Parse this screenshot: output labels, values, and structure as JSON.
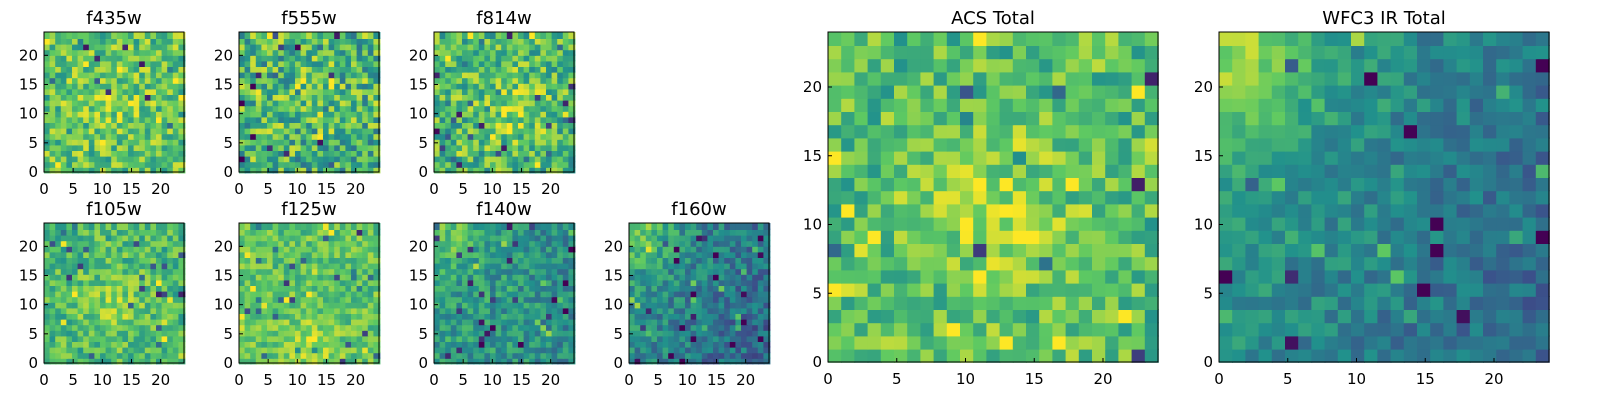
{
  "figure": {
    "description": "Grid of image panels for per-filter and combined stacks",
    "colormap": {
      "name": "viridis",
      "stops": [
        "#440154",
        "#3b528b",
        "#21918c",
        "#5ec962",
        "#fde725"
      ]
    }
  },
  "chart_data": [
    {
      "id": "f435w",
      "type": "heatmap",
      "title": "f435w",
      "grid": [
        25,
        25
      ],
      "xlim": [
        0,
        24
      ],
      "ylim": [
        0,
        24
      ],
      "xticks": [
        0,
        5,
        10,
        15,
        20
      ],
      "yticks": [
        0,
        5,
        10,
        15,
        20
      ],
      "tick_labels_x": [
        "0",
        "5",
        "10",
        "15",
        "20"
      ],
      "tick_labels_y": [
        "0",
        "5",
        "10",
        "15",
        "20"
      ],
      "pattern": {
        "mean": 0.72,
        "noise": 0.22,
        "bright_center": [
          12,
          12
        ],
        "bright_strength": 0.08,
        "seed": 435
      }
    },
    {
      "id": "f555w",
      "type": "heatmap",
      "title": "f555w",
      "grid": [
        25,
        25
      ],
      "xlim": [
        0,
        24
      ],
      "ylim": [
        0,
        24
      ],
      "xticks": [
        0,
        5,
        10,
        15,
        20
      ],
      "yticks": [
        0,
        5,
        10,
        15,
        20
      ],
      "tick_labels_x": [
        "0",
        "5",
        "10",
        "15",
        "20"
      ],
      "tick_labels_y": [
        "0",
        "5",
        "10",
        "15",
        "20"
      ],
      "pattern": {
        "mean": 0.66,
        "noise": 0.28,
        "bright_center": [
          12,
          12
        ],
        "bright_strength": 0.04,
        "seed": 555
      }
    },
    {
      "id": "f814w",
      "type": "heatmap",
      "title": "f814w",
      "grid": [
        25,
        25
      ],
      "xlim": [
        0,
        24
      ],
      "ylim": [
        0,
        24
      ],
      "xticks": [
        0,
        5,
        10,
        15,
        20
      ],
      "yticks": [
        0,
        5,
        10,
        15,
        20
      ],
      "tick_labels_x": [
        "0",
        "5",
        "10",
        "15",
        "20"
      ],
      "tick_labels_y": [
        "0",
        "5",
        "10",
        "15",
        "20"
      ],
      "pattern": {
        "mean": 0.68,
        "noise": 0.24,
        "bright_center": [
          13,
          11
        ],
        "bright_strength": 0.14,
        "seed": 814
      }
    },
    {
      "id": "f105w",
      "type": "heatmap",
      "title": "f105w",
      "grid": [
        25,
        25
      ],
      "xlim": [
        0,
        24
      ],
      "ylim": [
        0,
        24
      ],
      "xticks": [
        0,
        5,
        10,
        15,
        20
      ],
      "yticks": [
        0,
        5,
        10,
        15,
        20
      ],
      "tick_labels_x": [
        "0",
        "5",
        "10",
        "15",
        "20"
      ],
      "tick_labels_y": [
        "0",
        "5",
        "10",
        "15",
        "20"
      ],
      "pattern": {
        "mean": 0.68,
        "noise": 0.18,
        "bright_center": [
          12,
          10
        ],
        "bright_strength": 0.12,
        "seed": 105
      }
    },
    {
      "id": "f125w",
      "type": "heatmap",
      "title": "f125w",
      "grid": [
        25,
        25
      ],
      "xlim": [
        0,
        24
      ],
      "ylim": [
        0,
        24
      ],
      "xticks": [
        0,
        5,
        10,
        15,
        20
      ],
      "yticks": [
        0,
        5,
        10,
        15,
        20
      ],
      "tick_labels_x": [
        "0",
        "5",
        "10",
        "15",
        "20"
      ],
      "tick_labels_y": [
        "0",
        "5",
        "10",
        "15",
        "20"
      ],
      "pattern": {
        "mean": 0.72,
        "noise": 0.16,
        "bright_center": [
          12,
          3
        ],
        "bright_strength": 0.12,
        "seed": 125
      }
    },
    {
      "id": "f140w",
      "type": "heatmap",
      "title": "f140w",
      "grid": [
        25,
        25
      ],
      "xlim": [
        0,
        24
      ],
      "ylim": [
        0,
        24
      ],
      "xticks": [
        0,
        5,
        10,
        15,
        20
      ],
      "yticks": [
        0,
        5,
        10,
        15,
        20
      ],
      "tick_labels_x": [
        "0",
        "5",
        "10",
        "15",
        "20"
      ],
      "tick_labels_y": [
        "0",
        "5",
        "10",
        "15",
        "20"
      ],
      "pattern": {
        "mean": 0.56,
        "noise": 0.16,
        "bright_center": [
          2,
          23
        ],
        "bright_strength": 0.18,
        "seed": 140
      }
    },
    {
      "id": "f160w",
      "type": "heatmap",
      "title": "f160w",
      "grid": [
        25,
        25
      ],
      "xlim": [
        0,
        24
      ],
      "ylim": [
        0,
        24
      ],
      "xticks": [
        0,
        5,
        10,
        15,
        20
      ],
      "yticks": [
        0,
        5,
        10,
        15,
        20
      ],
      "tick_labels_x": [
        "0",
        "5",
        "10",
        "15",
        "20"
      ],
      "tick_labels_y": [
        "0",
        "5",
        "10",
        "15",
        "20"
      ],
      "pattern": {
        "mean": 0.48,
        "noise": 0.16,
        "bright_center": [
          1,
          23
        ],
        "bright_strength": 0.22,
        "seed": 160
      }
    },
    {
      "id": "acs-total",
      "type": "heatmap",
      "title": "ACS Total",
      "grid": [
        25,
        25
      ],
      "xlim": [
        0,
        24
      ],
      "ylim": [
        0,
        24
      ],
      "xticks": [
        0,
        5,
        10,
        15,
        20
      ],
      "yticks": [
        0,
        5,
        10,
        15,
        20
      ],
      "tick_labels_x": [
        "0",
        "5",
        "10",
        "15",
        "20"
      ],
      "tick_labels_y": [
        "0",
        "5",
        "10",
        "15",
        "20"
      ],
      "pattern": {
        "mean": 0.7,
        "noise": 0.2,
        "bright_center": [
          12,
          11
        ],
        "bright_strength": 0.16,
        "seed": 777
      }
    },
    {
      "id": "wfc3-ir-total",
      "type": "heatmap",
      "title": "WFC3 IR Total",
      "grid": [
        25,
        25
      ],
      "xlim": [
        0,
        24
      ],
      "ylim": [
        0,
        24
      ],
      "xticks": [
        0,
        5,
        10,
        15,
        20
      ],
      "yticks": [
        0,
        5,
        10,
        15,
        20
      ],
      "tick_labels_x": [
        "0",
        "5",
        "10",
        "15",
        "20"
      ],
      "tick_labels_y": [
        "0",
        "5",
        "10",
        "15",
        "20"
      ],
      "pattern": {
        "mean": 0.5,
        "noise": 0.12,
        "bright_center": [
          1,
          23
        ],
        "bright_strength": 0.28,
        "seed": 888
      }
    }
  ]
}
